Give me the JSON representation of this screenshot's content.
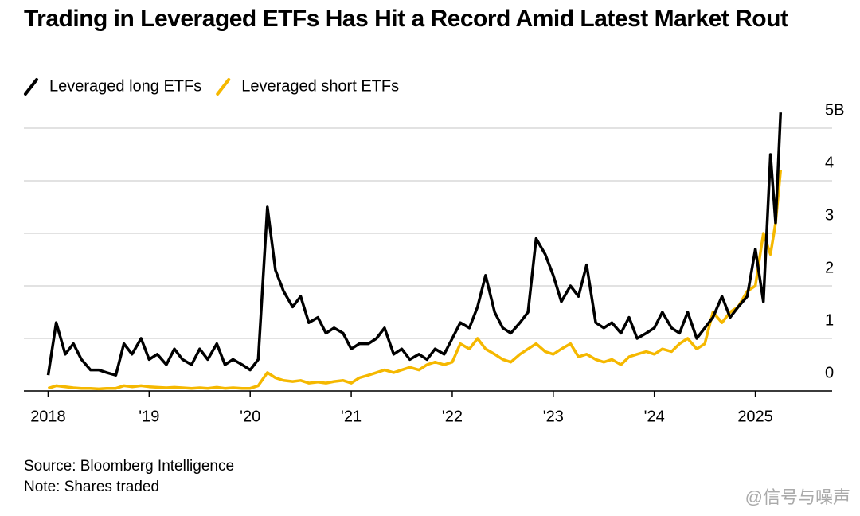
{
  "chart_data": {
    "type": "line",
    "title": "Trading in Leveraged ETFs Has Hit a Record Amid Latest Market Rout",
    "source": "Source: Bloomberg Intelligence",
    "note": "Note: Shares traded",
    "watermark": "@信号与噪声",
    "x": [
      2018.0,
      2018.08,
      2018.17,
      2018.25,
      2018.33,
      2018.42,
      2018.5,
      2018.58,
      2018.67,
      2018.75,
      2018.83,
      2018.92,
      2019.0,
      2019.08,
      2019.17,
      2019.25,
      2019.33,
      2019.42,
      2019.5,
      2019.58,
      2019.67,
      2019.75,
      2019.83,
      2019.92,
      2020.0,
      2020.08,
      2020.17,
      2020.25,
      2020.33,
      2020.42,
      2020.5,
      2020.58,
      2020.67,
      2020.75,
      2020.83,
      2020.92,
      2021.0,
      2021.08,
      2021.17,
      2021.25,
      2021.33,
      2021.42,
      2021.5,
      2021.58,
      2021.67,
      2021.75,
      2021.83,
      2021.92,
      2022.0,
      2022.08,
      2022.17,
      2022.25,
      2022.33,
      2022.42,
      2022.5,
      2022.58,
      2022.67,
      2022.75,
      2022.83,
      2022.92,
      2023.0,
      2023.08,
      2023.17,
      2023.25,
      2023.33,
      2023.42,
      2023.5,
      2023.58,
      2023.67,
      2023.75,
      2023.83,
      2023.92,
      2024.0,
      2024.08,
      2024.17,
      2024.25,
      2024.33,
      2024.42,
      2024.5,
      2024.58,
      2024.67,
      2024.75,
      2024.83,
      2024.92,
      2025.0,
      2025.08,
      2025.15,
      2025.2,
      2025.25
    ],
    "series": [
      {
        "name": "Leveraged long ETFs",
        "color": "#000000",
        "values": [
          0.3,
          1.3,
          0.7,
          0.9,
          0.6,
          0.4,
          0.4,
          0.35,
          0.3,
          0.9,
          0.7,
          1.0,
          0.6,
          0.7,
          0.5,
          0.8,
          0.6,
          0.5,
          0.8,
          0.6,
          0.9,
          0.5,
          0.6,
          0.5,
          0.4,
          0.6,
          3.5,
          2.3,
          1.9,
          1.6,
          1.8,
          1.3,
          1.4,
          1.1,
          1.2,
          1.1,
          0.8,
          0.9,
          0.9,
          1.0,
          1.2,
          0.7,
          0.8,
          0.6,
          0.7,
          0.6,
          0.8,
          0.7,
          1.0,
          1.3,
          1.2,
          1.6,
          2.2,
          1.5,
          1.2,
          1.1,
          1.3,
          1.5,
          2.9,
          2.6,
          2.2,
          1.7,
          2.0,
          1.8,
          2.4,
          1.3,
          1.2,
          1.3,
          1.1,
          1.4,
          1.0,
          1.1,
          1.2,
          1.5,
          1.2,
          1.1,
          1.5,
          1.0,
          1.2,
          1.4,
          1.8,
          1.4,
          1.6,
          1.8,
          2.7,
          1.7,
          4.5,
          3.2,
          5.3
        ]
      },
      {
        "name": "Leveraged short ETFs",
        "color": "#f5b800",
        "values": [
          0.05,
          0.1,
          0.08,
          0.06,
          0.05,
          0.05,
          0.04,
          0.05,
          0.05,
          0.1,
          0.08,
          0.1,
          0.08,
          0.07,
          0.06,
          0.07,
          0.06,
          0.05,
          0.06,
          0.05,
          0.07,
          0.05,
          0.06,
          0.05,
          0.05,
          0.1,
          0.35,
          0.25,
          0.2,
          0.18,
          0.2,
          0.15,
          0.17,
          0.15,
          0.18,
          0.2,
          0.15,
          0.25,
          0.3,
          0.35,
          0.4,
          0.35,
          0.4,
          0.45,
          0.4,
          0.5,
          0.55,
          0.5,
          0.55,
          0.9,
          0.8,
          1.0,
          0.8,
          0.7,
          0.6,
          0.55,
          0.7,
          0.8,
          0.9,
          0.75,
          0.7,
          0.8,
          0.9,
          0.65,
          0.7,
          0.6,
          0.55,
          0.6,
          0.5,
          0.65,
          0.7,
          0.75,
          0.7,
          0.8,
          0.75,
          0.9,
          1.0,
          0.8,
          0.9,
          1.5,
          1.3,
          1.5,
          1.6,
          1.9,
          2.0,
          3.0,
          2.6,
          3.2,
          4.2
        ]
      }
    ],
    "xlim": [
      2017.76,
      2025.76
    ],
    "xticks": [
      2018,
      {
        "value": 2019,
        "label": "'19"
      },
      {
        "value": 2020,
        "label": "'20"
      },
      {
        "value": 2021,
        "label": "'21"
      },
      {
        "value": 2022,
        "label": "'22"
      },
      {
        "value": 2023,
        "label": "'23"
      },
      {
        "value": 2024,
        "label": "'24"
      },
      2025
    ],
    "ylim": [
      0,
      5.5
    ],
    "yticks": [
      0,
      1,
      2,
      3,
      4,
      {
        "value": 5,
        "label": "5B"
      }
    ],
    "grid": true
  }
}
